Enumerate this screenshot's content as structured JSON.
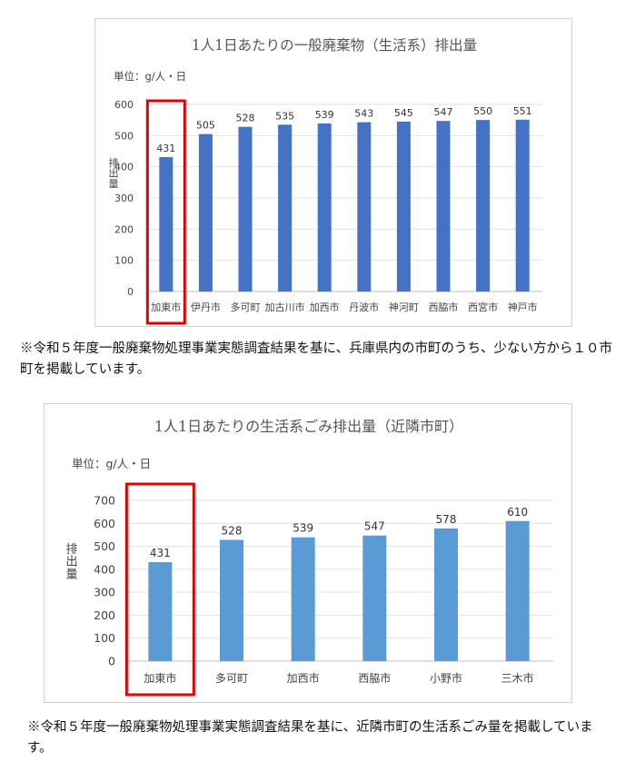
{
  "chart_data": [
    {
      "type": "bar",
      "title": "1人1日あたりの一般廃棄物（生活系）排出量",
      "unit_label": "単位：g/人・日",
      "ylabel": "排出量",
      "categories": [
        "加東市",
        "伊丹市",
        "多可町",
        "加古川市",
        "加西市",
        "丹波市",
        "神河町",
        "西脇市",
        "西宮市",
        "神戸市"
      ],
      "values": [
        431,
        505,
        528,
        535,
        539,
        543,
        545,
        547,
        550,
        551
      ],
      "ylim": [
        0,
        600
      ],
      "yticks": [
        0,
        100,
        200,
        300,
        400,
        500,
        600
      ],
      "highlight_index": 0,
      "bar_color": "#4472C4",
      "highlight_color": "#E00000",
      "grid": true
    },
    {
      "type": "bar",
      "title": "1人1日あたりの生活系ごみ排出量（近隣市町）",
      "unit_label": "単位：g/人・日",
      "ylabel": "排出量",
      "categories": [
        "加東市",
        "多可町",
        "加西市",
        "西脇市",
        "小野市",
        "三木市"
      ],
      "values": [
        431,
        528,
        539,
        547,
        578,
        610
      ],
      "ylim": [
        0,
        700
      ],
      "yticks": [
        0,
        100,
        200,
        300,
        400,
        500,
        600,
        700
      ],
      "highlight_index": 0,
      "bar_color": "#5B9BD5",
      "highlight_color": "#E00000",
      "grid": true
    }
  ],
  "notes": [
    "※令和５年度一般廃棄物処理事業実態調査結果を基に、兵庫県内の市町のうち、少ない方から１０市町を掲載しています。",
    "※令和５年度一般廃棄物処理事業実態調査結果を基に、近隣市町の生活系ごみ量を掲載しています。"
  ]
}
